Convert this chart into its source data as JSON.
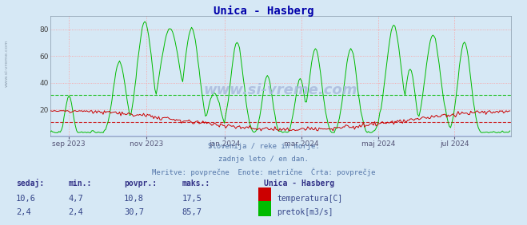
{
  "title": "Unica - Hasberg",
  "title_color": "#0000aa",
  "bg_color": "#d6e8f5",
  "plot_bg_color": "#d6e8f5",
  "grid_color": "#ff9999",
  "temp_avg": 10.8,
  "flow_avg": 30.7,
  "temp_color": "#cc0000",
  "flow_color": "#00bb00",
  "avg_line_temp_color": "#cc0000",
  "avg_line_flow_color": "#00bb00",
  "zero_line_color": "#0000cc",
  "watermark": "www.si-vreme.com",
  "watermark_color": "#aabbdd",
  "ylim": [
    0,
    90
  ],
  "yticks": [
    20,
    40,
    60,
    80
  ],
  "xticklabels": [
    "sep 2023",
    "nov 2023",
    "jan 2024",
    "mar 2024",
    "maj 2024",
    "jul 2024"
  ],
  "subtitle_lines": [
    "Slovenija / reke in morje.",
    "zadnje leto / en dan.",
    "Meritve: povprečne  Enote: metrične  Črta: povprečje"
  ],
  "subtitle_color": "#5577aa",
  "legend_title": "Unica - Hasberg",
  "legend_items": [
    {
      "label": "temperatura[C]",
      "color": "#cc0000"
    },
    {
      "label": "pretok[m3/s]",
      "color": "#00bb00"
    }
  ],
  "table_headers": [
    "sedaj:",
    "min.:",
    "povpr.:",
    "maks.:"
  ],
  "table_rows": [
    [
      "10,6",
      "4,7",
      "10,8",
      "17,5"
    ],
    [
      "2,4",
      "2,4",
      "30,7",
      "85,7"
    ]
  ],
  "table_header_color": "#333388",
  "table_value_color": "#334488",
  "legend_title_color": "#333388",
  "left_watermark": "www.si-vreme.com",
  "left_watermark_color": "#8899aa",
  "n_points": 365
}
